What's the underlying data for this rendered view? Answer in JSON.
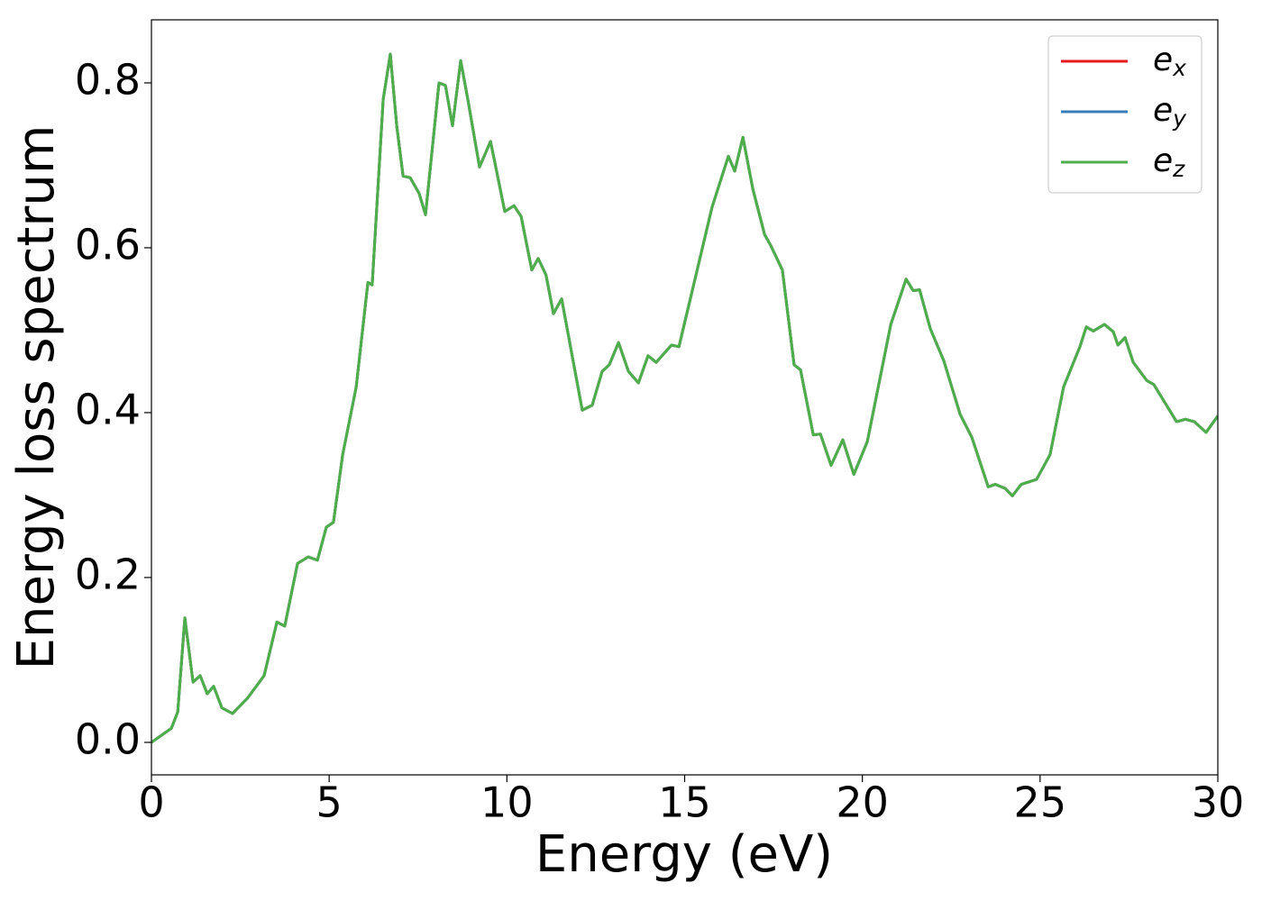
{
  "chart_data": {
    "type": "line",
    "x_label": "Energy (eV)",
    "y_label": "Energy loss spectrum",
    "x": [
      0,
      0.56,
      0.74,
      0.94,
      1.17,
      1.37,
      1.57,
      1.75,
      1.98,
      2.28,
      2.71,
      3.17,
      3.53,
      3.75,
      4.11,
      4.41,
      4.67,
      4.92,
      5.12,
      5.38,
      5.76,
      6.09,
      6.21,
      6.52,
      6.72,
      6.9,
      7.08,
      7.28,
      7.53,
      7.71,
      8.09,
      8.27,
      8.47,
      8.7,
      8.9,
      9.23,
      9.54,
      9.94,
      10.2,
      10.4,
      10.7,
      10.88,
      11.1,
      11.31,
      11.54,
      11.72,
      12.12,
      12.4,
      12.68,
      12.88,
      13.14,
      13.42,
      13.7,
      13.97,
      14.2,
      14.63,
      14.84,
      15.27,
      15.77,
      16.23,
      16.41,
      16.64,
      16.92,
      17.25,
      17.42,
      17.75,
      18.08,
      18.26,
      18.62,
      18.82,
      19.12,
      19.45,
      19.76,
      20.14,
      20.8,
      21.23,
      21.43,
      21.61,
      21.91,
      22.29,
      22.75,
      23.08,
      23.54,
      23.74,
      24.02,
      24.22,
      24.47,
      24.9,
      25.28,
      25.66,
      26.12,
      26.3,
      26.5,
      26.81,
      27.06,
      27.19,
      27.39,
      27.62,
      28.0,
      28.2,
      28.84,
      29.09,
      29.34,
      29.67,
      30.0
    ],
    "series": [
      {
        "name": "ex",
        "color": "#e41a1c",
        "values": [
          0,
          0.017,
          0.037,
          0.151,
          0.073,
          0.081,
          0.059,
          0.068,
          0.042,
          0.035,
          0.054,
          0.081,
          0.146,
          0.141,
          0.217,
          0.225,
          0.221,
          0.261,
          0.267,
          0.349,
          0.431,
          0.558,
          0.555,
          0.78,
          0.835,
          0.748,
          0.687,
          0.685,
          0.666,
          0.64,
          0.8,
          0.797,
          0.748,
          0.827,
          0.78,
          0.698,
          0.729,
          0.644,
          0.651,
          0.638,
          0.573,
          0.587,
          0.567,
          0.52,
          0.538,
          0.496,
          0.403,
          0.409,
          0.45,
          0.458,
          0.485,
          0.45,
          0.436,
          0.469,
          0.461,
          0.482,
          0.48,
          0.558,
          0.649,
          0.711,
          0.693,
          0.734,
          0.671,
          0.616,
          0.603,
          0.573,
          0.458,
          0.452,
          0.373,
          0.374,
          0.336,
          0.367,
          0.325,
          0.365,
          0.507,
          0.562,
          0.548,
          0.549,
          0.502,
          0.463,
          0.398,
          0.37,
          0.31,
          0.313,
          0.308,
          0.299,
          0.313,
          0.319,
          0.349,
          0.431,
          0.48,
          0.504,
          0.499,
          0.507,
          0.498,
          0.482,
          0.491,
          0.461,
          0.439,
          0.434,
          0.389,
          0.392,
          0.389,
          0.376,
          0.396
        ]
      },
      {
        "name": "ey",
        "color": "#377eb8",
        "values": [
          0,
          0.017,
          0.037,
          0.151,
          0.073,
          0.081,
          0.059,
          0.068,
          0.042,
          0.035,
          0.054,
          0.081,
          0.146,
          0.141,
          0.217,
          0.225,
          0.221,
          0.261,
          0.267,
          0.349,
          0.431,
          0.558,
          0.555,
          0.78,
          0.835,
          0.748,
          0.687,
          0.685,
          0.666,
          0.64,
          0.8,
          0.797,
          0.748,
          0.827,
          0.78,
          0.698,
          0.729,
          0.644,
          0.651,
          0.638,
          0.573,
          0.587,
          0.567,
          0.52,
          0.538,
          0.496,
          0.403,
          0.409,
          0.45,
          0.458,
          0.485,
          0.45,
          0.436,
          0.469,
          0.461,
          0.482,
          0.48,
          0.558,
          0.649,
          0.711,
          0.693,
          0.734,
          0.671,
          0.616,
          0.603,
          0.573,
          0.458,
          0.452,
          0.373,
          0.374,
          0.336,
          0.367,
          0.325,
          0.365,
          0.507,
          0.562,
          0.548,
          0.549,
          0.502,
          0.463,
          0.398,
          0.37,
          0.31,
          0.313,
          0.308,
          0.299,
          0.313,
          0.319,
          0.349,
          0.431,
          0.48,
          0.504,
          0.499,
          0.507,
          0.498,
          0.482,
          0.491,
          0.461,
          0.439,
          0.434,
          0.389,
          0.392,
          0.389,
          0.376,
          0.396
        ]
      },
      {
        "name": "ez",
        "color": "#4daf4a",
        "values": [
          0,
          0.017,
          0.037,
          0.151,
          0.073,
          0.081,
          0.059,
          0.068,
          0.042,
          0.035,
          0.054,
          0.081,
          0.146,
          0.141,
          0.217,
          0.225,
          0.221,
          0.261,
          0.267,
          0.349,
          0.431,
          0.558,
          0.555,
          0.78,
          0.835,
          0.748,
          0.687,
          0.685,
          0.666,
          0.64,
          0.8,
          0.797,
          0.748,
          0.827,
          0.78,
          0.698,
          0.729,
          0.644,
          0.651,
          0.638,
          0.573,
          0.587,
          0.567,
          0.52,
          0.538,
          0.496,
          0.403,
          0.409,
          0.45,
          0.458,
          0.485,
          0.45,
          0.436,
          0.469,
          0.461,
          0.482,
          0.48,
          0.558,
          0.649,
          0.711,
          0.693,
          0.734,
          0.671,
          0.616,
          0.603,
          0.573,
          0.458,
          0.452,
          0.373,
          0.374,
          0.336,
          0.367,
          0.325,
          0.365,
          0.507,
          0.562,
          0.548,
          0.549,
          0.502,
          0.463,
          0.398,
          0.37,
          0.31,
          0.313,
          0.308,
          0.299,
          0.313,
          0.319,
          0.349,
          0.431,
          0.48,
          0.504,
          0.499,
          0.507,
          0.498,
          0.482,
          0.491,
          0.461,
          0.439,
          0.434,
          0.389,
          0.392,
          0.389,
          0.376,
          0.396
        ]
      }
    ],
    "xlim": [
      0,
      30
    ],
    "xticks": [
      0,
      5,
      10,
      15,
      20,
      25,
      30
    ],
    "ylim": [
      -0.0394,
      0.8765
    ],
    "yticks": [
      {
        "value": 0,
        "label": "0.0"
      },
      0.2,
      0.4,
      0.6,
      0.8
    ],
    "legend": "upper right",
    "grid": false
  }
}
